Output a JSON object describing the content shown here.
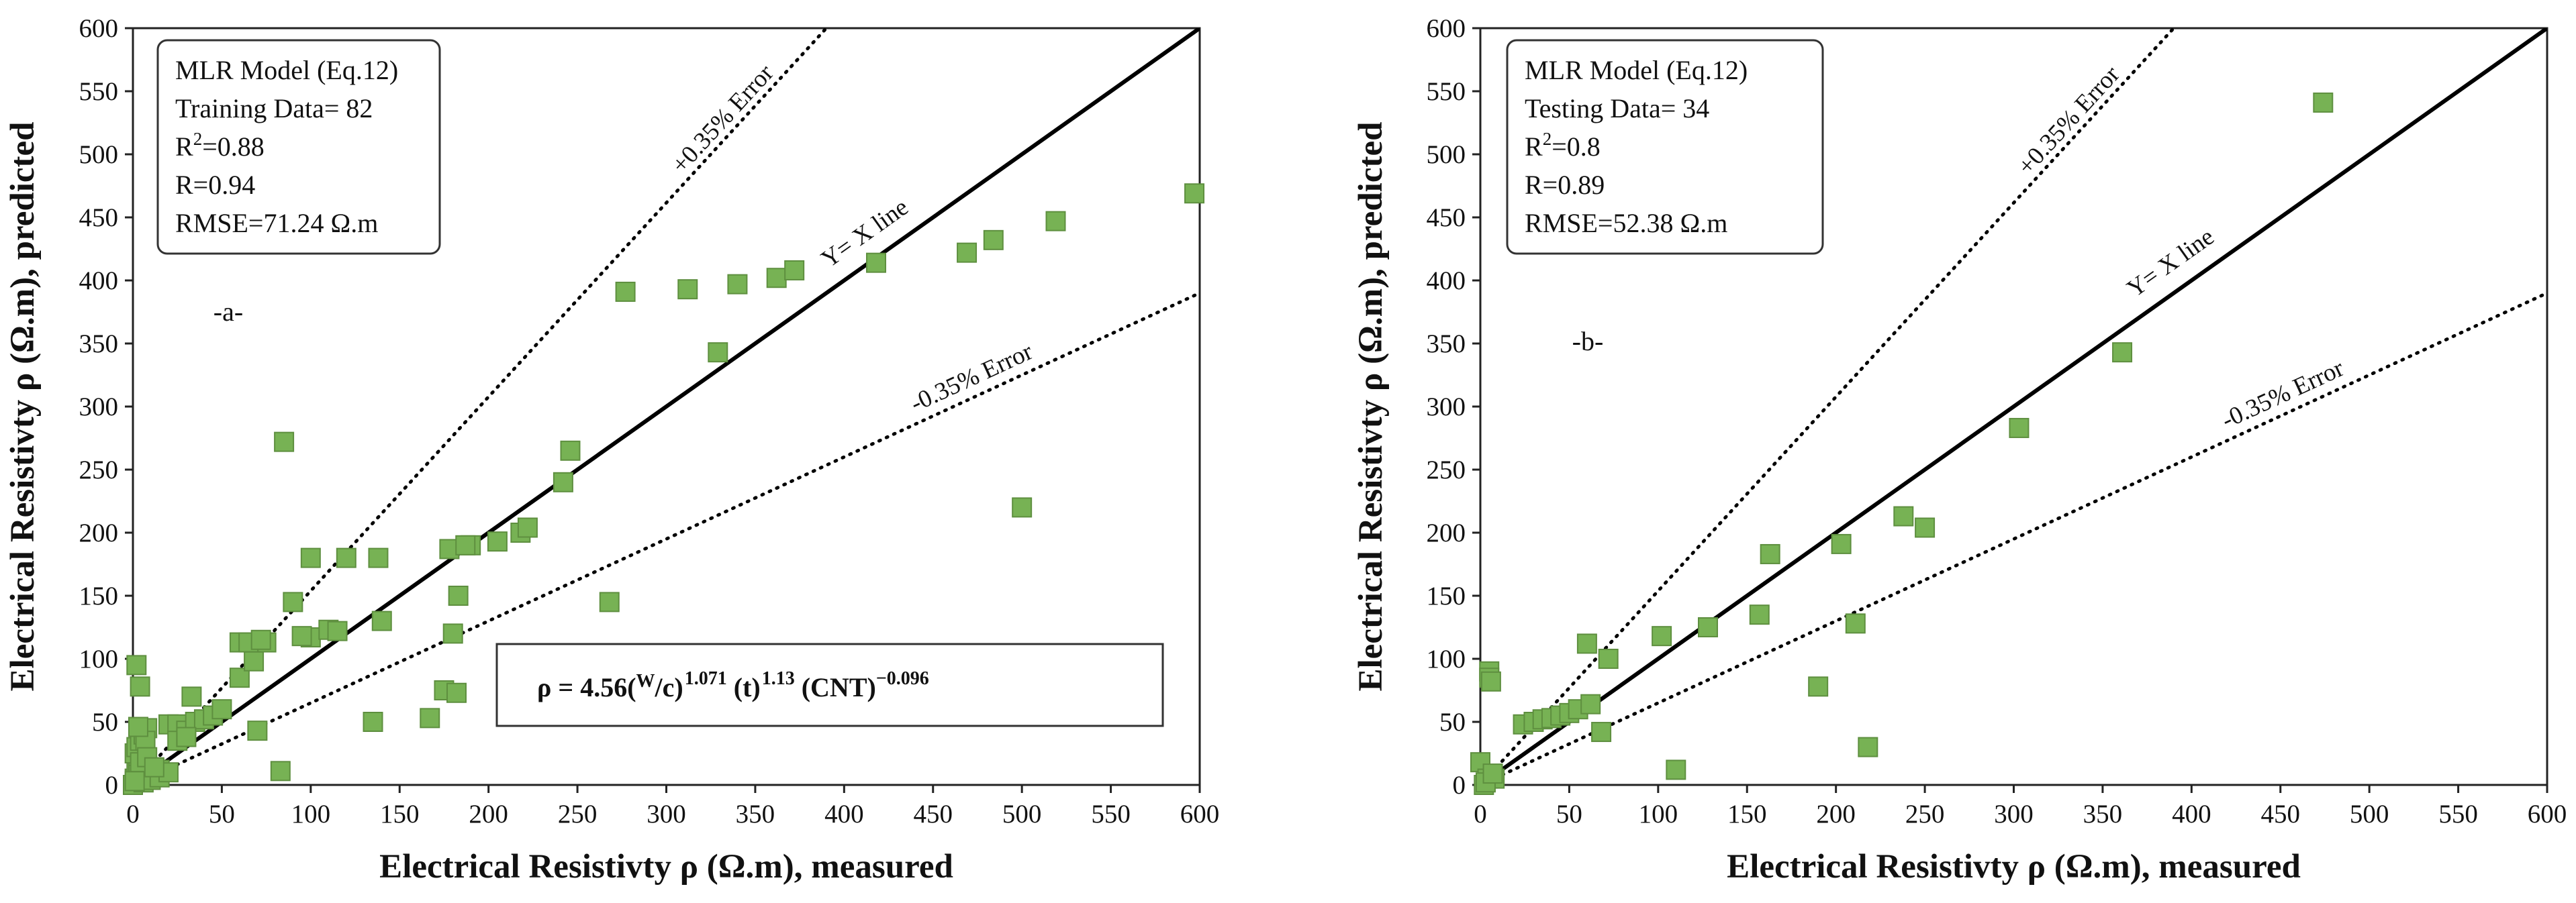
{
  "panels": [
    {
      "id": "a",
      "panel_label": "-a-",
      "stats_box": {
        "lines": [
          {
            "text": "MLR Model (Eq.12)"
          },
          {
            "text": "Training Data= 82"
          },
          {
            "base": "R",
            "sup": "2",
            "rest": "=0.88"
          },
          {
            "text": "R=0.94"
          },
          {
            "text": "RMSE=71.24 Ω.m"
          }
        ]
      },
      "formula": {
        "lhs": "ρ = 4.56(",
        "w": "W",
        "slash": "/",
        "c": "c",
        "e1": "1.071",
        "t": "(t)",
        "e2": "1.13",
        "cnt": "(CNT)",
        "e3": "−0.096"
      }
    },
    {
      "id": "b",
      "panel_label": "-b-",
      "stats_box": {
        "lines": [
          {
            "text": "MLR Model (Eq.12)"
          },
          {
            "text": "Testing Data= 34"
          },
          {
            "base": "R",
            "sup": "2",
            "rest": "=0.8"
          },
          {
            "text": "R=0.89"
          },
          {
            "text": "RMSE=52.38 Ω.m"
          }
        ]
      },
      "formula": null
    }
  ],
  "chart_data": [
    {
      "type": "scatter",
      "title": "",
      "xlabel": "Electrical Resistivty ρ (Ω.m), measured",
      "ylabel": "Electrical Resistivty ρ (Ω.m), predicted",
      "xlim": [
        0,
        600
      ],
      "ylim": [
        0,
        600
      ],
      "xticks": [
        0,
        50,
        100,
        150,
        200,
        250,
        300,
        350,
        400,
        450,
        500,
        550,
        600
      ],
      "yticks": [
        0,
        50,
        100,
        150,
        200,
        250,
        300,
        350,
        400,
        450,
        500,
        550,
        600
      ],
      "marker_color": "#77b254",
      "marker_edge": "#5e8f3f",
      "reference_lines": [
        {
          "name": "Y= X line",
          "slope": 1.0,
          "style": "solid"
        },
        {
          "name": "+0.35% Error",
          "slope": 1.5385,
          "style": "dotted"
        },
        {
          "name": "-0.35% Error",
          "slope": 0.65,
          "style": "dotted"
        }
      ],
      "series": [
        {
          "name": "Training Data",
          "x": [
            0,
            1,
            2,
            3,
            5,
            1,
            2,
            4,
            6,
            8,
            10,
            3,
            12,
            15,
            2,
            4,
            7,
            5,
            20,
            25,
            30,
            35,
            40,
            33,
            45,
            25,
            30,
            70,
            75,
            60,
            65,
            100,
            100,
            110,
            90,
            115,
            120,
            83,
            85,
            138,
            140,
            135,
            167,
            175,
            180,
            178,
            182,
            190,
            183,
            187,
            205,
            218,
            222,
            242,
            246,
            268,
            277,
            312,
            329,
            340,
            362,
            372,
            418,
            469,
            484,
            519,
            500,
            597,
            6,
            10,
            15,
            20,
            4,
            8,
            12,
            1,
            3,
            50,
            60,
            68,
            72,
            95
          ],
          "y": [
            0,
            5,
            10,
            15,
            20,
            25,
            30,
            35,
            40,
            45,
            10,
            8,
            13,
            12,
            95,
            78,
            35,
            5,
            48,
            48,
            43,
            50,
            52,
            70,
            55,
            35,
            38,
            43,
            113,
            113,
            113,
            180,
            117,
            123,
            145,
            122,
            180,
            11,
            272,
            180,
            130,
            50,
            53,
            75,
            120,
            187,
            73,
            190,
            150,
            190,
            193,
            200,
            204,
            240,
            265,
            145,
            391,
            393,
            343,
            397,
            402,
            408,
            414,
            422,
            432,
            447,
            220,
            469,
            2,
            4,
            6,
            10,
            18,
            22,
            14,
            3,
            46,
            60,
            85,
            98,
            115,
            118
          ]
        }
      ]
    },
    {
      "type": "scatter",
      "title": "",
      "xlabel": "Electrical Resistivty ρ (Ω.m), measured",
      "ylabel": "Electrical Resistivty ρ (Ω.m), predicted",
      "xlim": [
        0,
        600
      ],
      "ylim": [
        0,
        600
      ],
      "xticks": [
        0,
        50,
        100,
        150,
        200,
        250,
        300,
        350,
        400,
        450,
        500,
        550,
        600
      ],
      "yticks": [
        0,
        50,
        100,
        150,
        200,
        250,
        300,
        350,
        400,
        450,
        500,
        550,
        600
      ],
      "marker_color": "#77b254",
      "marker_edge": "#5e8f3f",
      "reference_lines": [
        {
          "name": "Y= X line",
          "slope": 1.0,
          "style": "solid"
        },
        {
          "name": "+0.35% Error",
          "slope": 1.5385,
          "style": "dotted"
        },
        {
          "name": "-0.35% Error",
          "slope": 0.65,
          "style": "dotted"
        }
      ],
      "series": [
        {
          "name": "Testing Data",
          "x": [
            0,
            2,
            5,
            5,
            6,
            4,
            8,
            24,
            30,
            35,
            40,
            45,
            50,
            55,
            60,
            62,
            68,
            72,
            102,
            110,
            128,
            157,
            163,
            190,
            203,
            211,
            218,
            238,
            250,
            303,
            361,
            474,
            3,
            7
          ],
          "y": [
            18,
            0,
            90,
            85,
            82,
            5,
            5,
            48,
            50,
            52,
            53,
            55,
            57,
            60,
            112,
            64,
            42,
            100,
            118,
            12,
            125,
            135,
            183,
            78,
            191,
            128,
            30,
            213,
            204,
            283,
            343,
            541,
            2,
            9
          ]
        }
      ]
    }
  ]
}
